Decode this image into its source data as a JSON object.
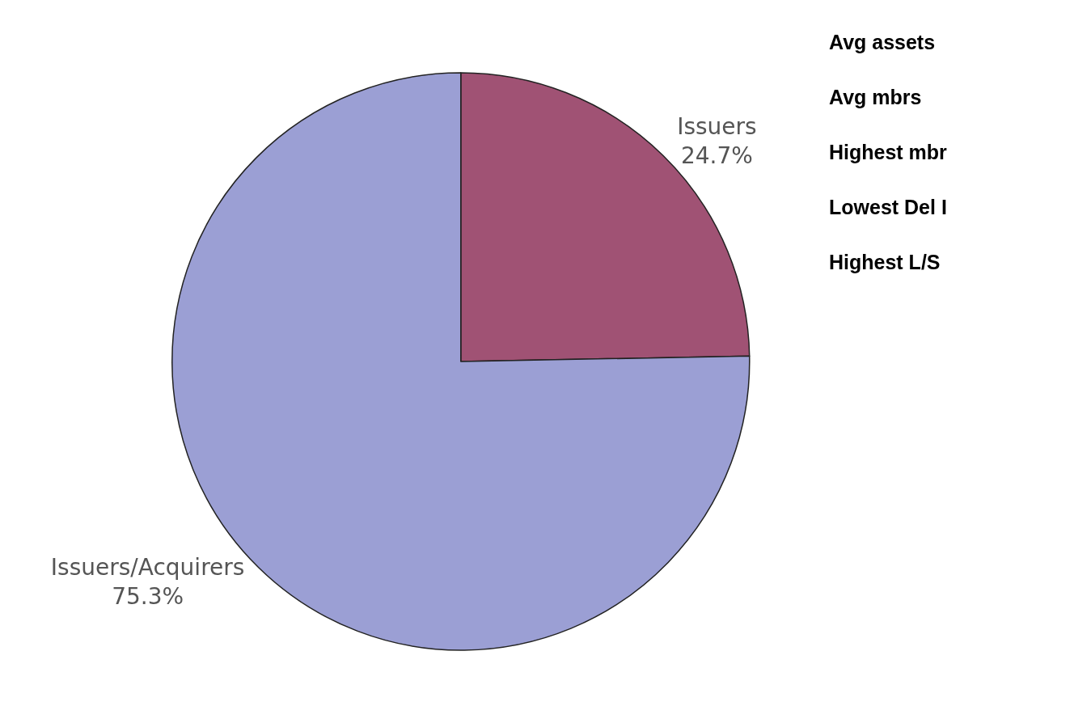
{
  "chart_data": {
    "type": "pie",
    "categories": [
      "Issuers",
      "Issuers/Acquirers"
    ],
    "values": [
      24.7,
      75.3
    ],
    "value_labels": [
      "24.7%",
      "75.3%"
    ],
    "colors": [
      "#a05274",
      "#9b9fd4"
    ],
    "annotations": [
      "Avg assets",
      "Avg mbrs",
      "Highest mbr",
      "Lowest Del I",
      "Highest L/S"
    ]
  }
}
